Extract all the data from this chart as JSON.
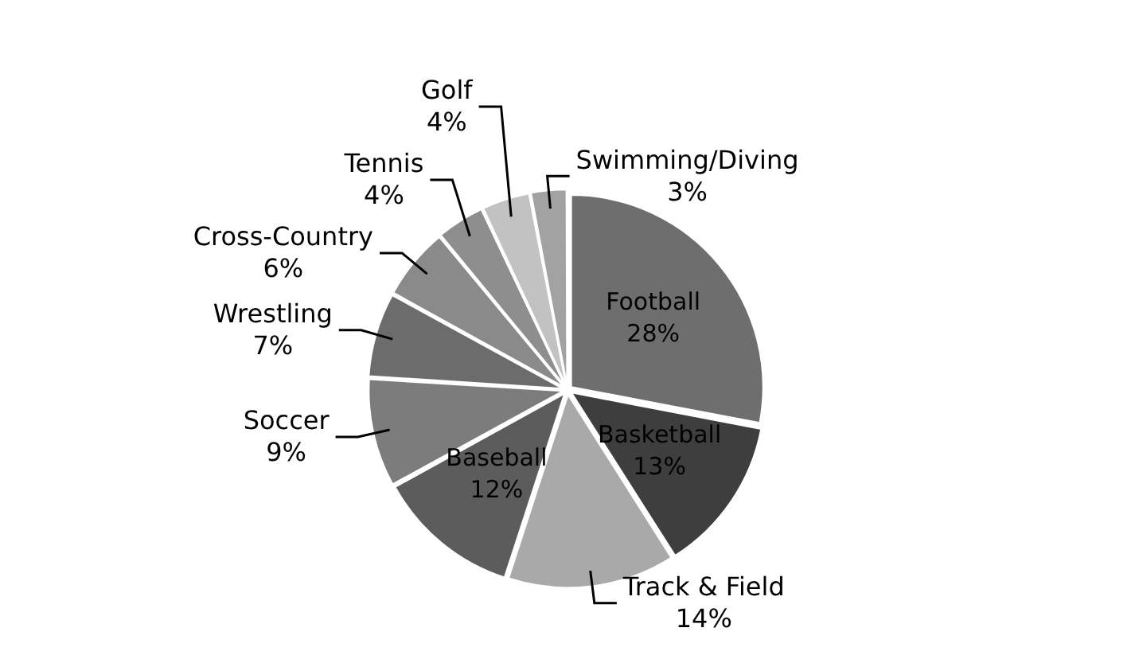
{
  "chart_data": {
    "type": "pie",
    "categories": [
      "Football",
      "Basketball",
      "Track & Field",
      "Baseball",
      "Soccer",
      "Wrestling",
      "Cross-Country",
      "Tennis",
      "Golf",
      "Swimming/Diving"
    ],
    "values": [
      28,
      13,
      14,
      12,
      9,
      7,
      6,
      4,
      4,
      3
    ],
    "value_labels": [
      "28%",
      "13%",
      "14%",
      "12%",
      "9%",
      "7%",
      "6%",
      "4%",
      "4%",
      "3%"
    ],
    "colors": [
      "#6e6e6e",
      "#3e3e3e",
      "#a9a9a9",
      "#5c5c5c",
      "#7c7c7c",
      "#6c6c6c",
      "#8a8a8a",
      "#8e8e8e",
      "#c2c2c2",
      "#a2a2a2"
    ],
    "legend": false
  }
}
